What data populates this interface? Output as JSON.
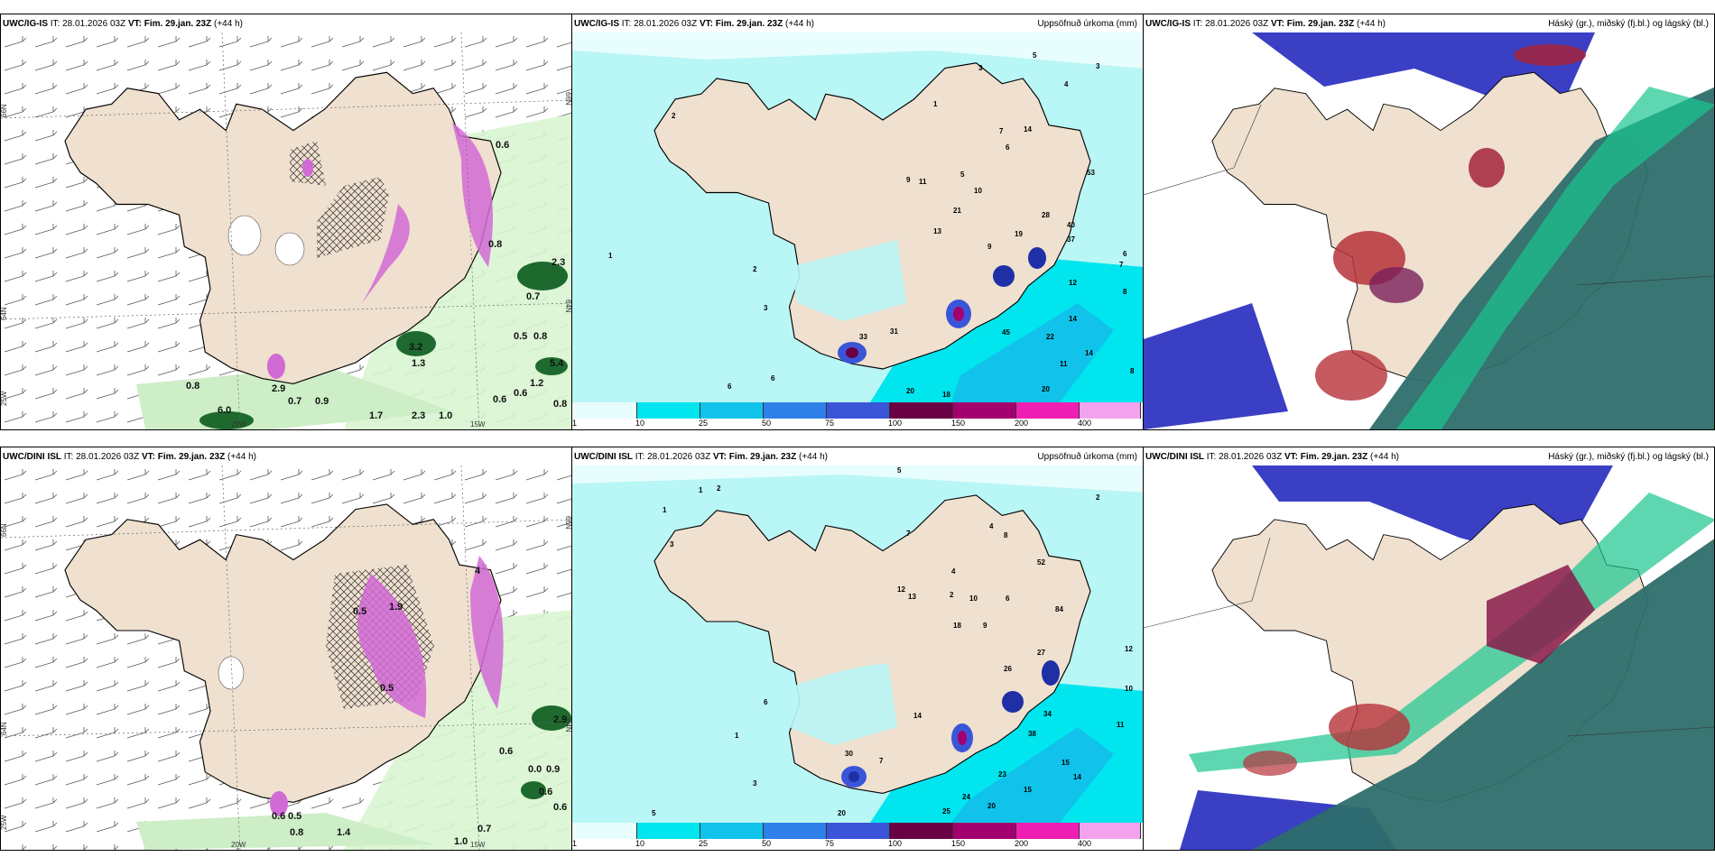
{
  "top_row": {
    "wind_panel": {
      "model": "UWC/IG-IS",
      "it_label": "IT:",
      "it_value": "28.01.2026 03Z",
      "vt_label": "VT:",
      "vt_value": "Fim. 29.jan. 23Z",
      "lead": "(+44 h)",
      "lat_labels": [
        "66N",
        "64N",
        "25W"
      ],
      "lat_labels_right": [
        "66N",
        "64N"
      ],
      "lon_labels": [
        "20W",
        "15W"
      ],
      "values": [
        "0.8",
        "0.7",
        "0.9",
        "6.0",
        "1.3",
        "2.9",
        "3.2",
        "0.7",
        "0.5",
        "0.8",
        "5.4",
        "1.2",
        "0.6",
        "0.8",
        "0.6",
        "1.0",
        "2.3",
        "1.7",
        "0.6",
        "0.8",
        "2.3"
      ]
    },
    "precip_panel": {
      "model": "UWC/IG-IS",
      "it_label": "IT:",
      "it_value": "28.01.2026 03Z",
      "vt_label": "VT:",
      "vt_value": "Fim. 29.jan. 23Z",
      "lead": "(+44 h)",
      "title_right": "Uppsöfnuð úrkoma (mm)",
      "numbers": [
        "2",
        "3",
        "1",
        "5",
        "4",
        "3",
        "14",
        "9",
        "11",
        "5",
        "10",
        "7",
        "6",
        "21",
        "13",
        "9",
        "19",
        "28",
        "40",
        "37",
        "53",
        "12",
        "14",
        "45",
        "14",
        "11",
        "20",
        "18",
        "20",
        "31",
        "33",
        "6",
        "6",
        "1",
        "3",
        "2",
        "8",
        "7",
        "6",
        "8",
        "22"
      ],
      "colorbar_labels": [
        "1",
        "10",
        "25",
        "50",
        "75",
        "100",
        "150",
        "200",
        "400"
      ]
    },
    "cloud_panel": {
      "model": "UWC/IG-IS",
      "it_label": "IT:",
      "it_value": "28.01.2026 03Z",
      "vt_label": "VT:",
      "vt_value": "Fim. 29.jan. 23Z",
      "lead": "(+44 h)",
      "title_right": "Háský (gr.), miðský (fj.bl.) og lágský (bl.)"
    }
  },
  "bottom_row": {
    "wind_panel": {
      "model": "UWC/DINI ISL",
      "it_label": "IT:",
      "it_value": "28.01.2026 03Z",
      "vt_label": "VT:",
      "vt_value": "Fim. 29.jan. 23Z",
      "lead": "(+44 h)",
      "lat_labels": [
        "66N",
        "64N",
        "25W"
      ],
      "lat_labels_right": [
        "66N",
        "64N"
      ],
      "lon_labels": [
        "20W",
        "15W"
      ],
      "values": [
        "0.6",
        "0.5",
        "0.8",
        "1.4",
        "0.6",
        "0.7",
        "1.0",
        "0.6",
        "0.0",
        "0.9",
        "0.6",
        "2.9",
        "1.9",
        "0.5",
        "0.5",
        "4"
      ]
    },
    "precip_panel": {
      "model": "UWC/DINI ISL",
      "it_label": "IT:",
      "it_value": "28.01.2026 03Z",
      "vt_label": "VT:",
      "vt_value": "Fim. 29.jan. 23Z",
      "lead": "(+44 h)",
      "title_right": "Uppsöfnuð úrkoma (mm)",
      "numbers": [
        "1",
        "2",
        "1",
        "5",
        "3",
        "4",
        "8",
        "2",
        "4",
        "7",
        "12",
        "13",
        "2",
        "10",
        "6",
        "18",
        "9",
        "52",
        "84",
        "26",
        "27",
        "34",
        "38",
        "15",
        "14",
        "23",
        "24",
        "20",
        "15",
        "25",
        "12",
        "10",
        "11",
        "20",
        "6",
        "5",
        "3",
        "1",
        "30",
        "14",
        "7"
      ],
      "colorbar_labels": [
        "1",
        "10",
        "25",
        "50",
        "75",
        "100",
        "150",
        "200",
        "400"
      ]
    },
    "cloud_panel": {
      "model": "UWC/DINI ISL",
      "it_label": "IT:",
      "it_value": "28.01.2026 03Z",
      "vt_label": "VT:",
      "vt_value": "Fim. 29.jan. 23Z",
      "lead": "(+44 h)",
      "title_right": "Háský (gr.), miðský (fj.bl.) og lágský (bl.)"
    }
  },
  "colors": {
    "land": "#efe0cf",
    "precip_scale": [
      "#e8fdfd",
      "#00e5ee",
      "#11c3ea",
      "#2f7fe8",
      "#3b55d9",
      "#1f2fa6",
      "#6a0044",
      "#a3006f",
      "#f01fb4",
      "#f3a2ee"
    ],
    "high_cloud": "#3a3fc4",
    "mid_cloud": "#b6323a",
    "low_cloud": "#1f8f6a"
  }
}
